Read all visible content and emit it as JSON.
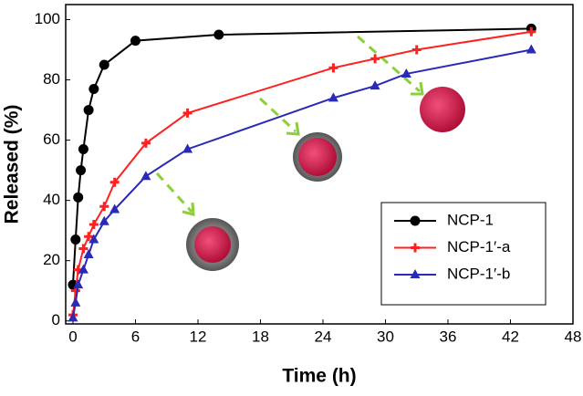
{
  "chart_data": {
    "type": "line",
    "xlabel": "Time (h)",
    "ylabel": "Released (%)",
    "xlim": [
      -0.7,
      48
    ],
    "ylim": [
      -1,
      105
    ],
    "xticks": [
      0,
      6,
      12,
      18,
      24,
      30,
      36,
      42,
      48
    ],
    "yticks": [
      0,
      20,
      40,
      60,
      80,
      100
    ],
    "legend": "lower right",
    "series": [
      {
        "name": "NCP-1",
        "color": "#000000",
        "marker": "circle",
        "x": [
          0,
          0.25,
          0.5,
          0.75,
          1,
          1.5,
          2,
          3,
          6,
          14,
          44
        ],
        "values": [
          12,
          27,
          41,
          50,
          57,
          70,
          77,
          85,
          93,
          95,
          97
        ]
      },
      {
        "name": "NCP-1′-a",
        "color": "#ff2020",
        "marker": "plus",
        "x": [
          0,
          0.25,
          0.5,
          1,
          1.5,
          2,
          3,
          4,
          7,
          11,
          25,
          29,
          33,
          44
        ],
        "values": [
          2,
          10,
          17,
          24,
          28,
          32,
          38,
          46,
          59,
          69,
          84,
          87,
          90,
          96
        ]
      },
      {
        "name": "NCP-1′-b",
        "color": "#2a2ab8",
        "marker": "triangle",
        "x": [
          0,
          0.25,
          0.5,
          1,
          1.5,
          2,
          3,
          4,
          7,
          11,
          25,
          29,
          32,
          44
        ],
        "values": [
          1,
          6,
          12,
          17,
          22,
          27,
          33,
          37,
          48,
          57,
          74,
          78,
          82,
          90
        ]
      }
    ]
  }
}
